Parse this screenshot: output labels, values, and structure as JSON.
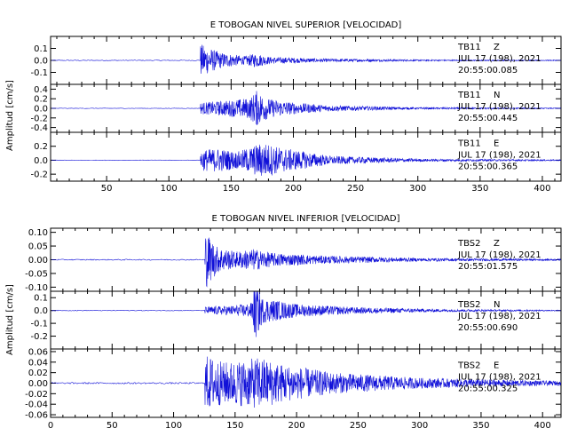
{
  "chart_data": [
    {
      "type": "line",
      "title": "E TOBOGAN NIVEL SUPERIOR [VELOCIDAD]",
      "ylabel": "Amplitud [cm/s]",
      "xlim": [
        5,
        415
      ],
      "x_ticks": [
        50,
        100,
        150,
        200,
        250,
        300,
        350,
        400
      ],
      "line_color": "#1010d8",
      "series": [
        {
          "station": "TB11",
          "component": "Z",
          "date": "JUL 17 (198), 2021",
          "time": "20:55:00.085",
          "ylim": [
            -0.2,
            0.2
          ],
          "y_ticks": [
            "0.1",
            "0.0",
            "-0.1"
          ],
          "y_tick_values": [
            0.1,
            0.0,
            -0.1
          ],
          "onset_s": 125,
          "envelope": [
            [
              125,
              0.14
            ],
            [
              140,
              0.07
            ],
            [
              160,
              0.035
            ],
            [
              170,
              0.06
            ],
            [
              180,
              0.03
            ],
            [
              220,
              0.015
            ],
            [
              300,
              0.006
            ],
            [
              415,
              0.003
            ]
          ],
          "pre_noise": 0.003
        },
        {
          "station": "TB11",
          "component": "N",
          "date": "JUL 17 (198), 2021",
          "time": "20:55:00.445",
          "ylim": [
            -0.5,
            0.5
          ],
          "y_ticks": [
            "0.4",
            "0.2",
            "0.0",
            "-0.2",
            "-0.4"
          ],
          "y_tick_values": [
            0.4,
            0.2,
            0.0,
            -0.2,
            -0.4
          ],
          "onset_s": 125,
          "envelope": [
            [
              125,
              0.12
            ],
            [
              145,
              0.16
            ],
            [
              165,
              0.22
            ],
            [
              170,
              0.38
            ],
            [
              180,
              0.2
            ],
            [
              200,
              0.12
            ],
            [
              230,
              0.06
            ],
            [
              300,
              0.02
            ],
            [
              415,
              0.008
            ]
          ],
          "pre_noise": 0.005
        },
        {
          "station": "TB11",
          "component": "E",
          "date": "JUL 17 (198), 2021",
          "time": "20:55:00.365",
          "ylim": [
            -0.3,
            0.4
          ],
          "y_ticks": [
            "0.2",
            "0.0",
            "-0.2"
          ],
          "y_tick_values": [
            0.2,
            0.0,
            -0.2
          ],
          "onset_s": 125,
          "envelope": [
            [
              125,
              0.15
            ],
            [
              140,
              0.17
            ],
            [
              155,
              0.12
            ],
            [
              175,
              0.26
            ],
            [
              190,
              0.18
            ],
            [
              210,
              0.12
            ],
            [
              230,
              0.06
            ],
            [
              300,
              0.02
            ],
            [
              415,
              0.008
            ]
          ],
          "pre_noise": 0.004
        }
      ]
    },
    {
      "type": "line",
      "title": "E TOBOGAN NIVEL INFERIOR [VELOCIDAD]",
      "ylabel": "Amplitud [cm/s]",
      "xlim": [
        0,
        415
      ],
      "x_ticks": [
        0,
        50,
        100,
        150,
        200,
        250,
        300,
        350,
        400
      ],
      "line_color": "#1010d8",
      "series": [
        {
          "station": "TBS2",
          "component": "Z",
          "date": "JUL 17 (198), 2021",
          "time": "20:55:01.575",
          "ylim": [
            -0.115,
            0.115
          ],
          "y_ticks": [
            "0.10",
            "0.05",
            "0.00",
            "-0.05",
            "-0.10"
          ],
          "y_tick_values": [
            0.1,
            0.05,
            0.0,
            -0.05,
            -0.1
          ],
          "onset_s": 125,
          "envelope": [
            [
              125,
              0.11
            ],
            [
              135,
              0.05
            ],
            [
              150,
              0.03
            ],
            [
              165,
              0.04
            ],
            [
              180,
              0.025
            ],
            [
              220,
              0.015
            ],
            [
              300,
              0.006
            ],
            [
              415,
              0.003
            ]
          ],
          "pre_noise": 0.002
        },
        {
          "station": "TBS2",
          "component": "N",
          "date": "JUL 17 (198), 2021",
          "time": "20:55:00.690",
          "ylim": [
            -0.3,
            0.15
          ],
          "y_ticks": [
            "0.1",
            "0.0",
            "-0.1",
            "-0.2"
          ],
          "y_tick_values": [
            0.1,
            0.0,
            -0.1,
            -0.2
          ],
          "onset_s": 125,
          "envelope": [
            [
              125,
              0.03
            ],
            [
              150,
              0.04
            ],
            [
              163,
              0.06
            ],
            [
              166,
              0.24
            ],
            [
              172,
              0.1
            ],
            [
              200,
              0.05
            ],
            [
              250,
              0.025
            ],
            [
              320,
              0.01
            ],
            [
              415,
              0.004
            ]
          ],
          "pre_noise": 0.003
        },
        {
          "station": "TBS2",
          "component": "E",
          "date": "JUL 17 (198), 2021",
          "time": "20:55:00.325",
          "ylim": [
            -0.065,
            0.065
          ],
          "y_ticks": [
            "0.06",
            "0.04",
            "0.02",
            "0.00",
            "-0.02",
            "-0.04",
            "-0.06"
          ],
          "y_tick_values": [
            0.06,
            0.04,
            0.02,
            0.0,
            -0.02,
            -0.04,
            -0.06
          ],
          "onset_s": 125,
          "envelope": [
            [
              125,
              0.055
            ],
            [
              140,
              0.04
            ],
            [
              160,
              0.045
            ],
            [
              170,
              0.05
            ],
            [
              190,
              0.035
            ],
            [
              230,
              0.02
            ],
            [
              300,
              0.01
            ],
            [
              415,
              0.004
            ]
          ],
          "pre_noise": 0.0015
        }
      ]
    }
  ]
}
